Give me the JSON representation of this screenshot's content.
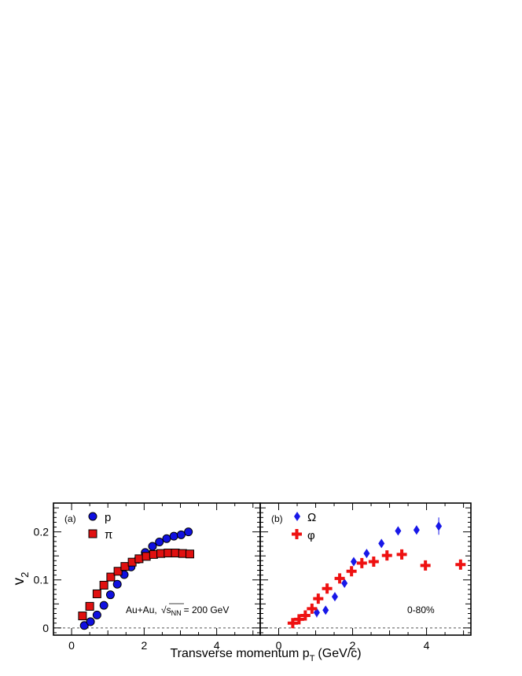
{
  "figure": {
    "ylabel_main": "v",
    "ylabel_sub": "2",
    "xlabel_main": "Transverse momentum p",
    "xlabel_sub": "T",
    "xlabel_unit": "(GeV/c)"
  },
  "chart_data": [
    {
      "type": "scatter",
      "panel_label": "(a)",
      "xlim": [
        -0.5,
        5.2
      ],
      "ylim": [
        -0.015,
        0.26
      ],
      "xticks": [
        0,
        2,
        4
      ],
      "yticks": [
        0,
        0.1,
        0.2
      ],
      "ytick_labels": [
        "0",
        "0.1",
        "0.2"
      ],
      "annotation": {
        "system": "Au+Au,",
        "sqrt_symbol": "√",
        "s_symbol": "s",
        "s_sub": "NN",
        "energy": "= 200 GeV"
      },
      "series": [
        {
          "name": "p",
          "marker": "circle",
          "color": "#1010e0",
          "x": [
            0.35,
            0.52,
            0.7,
            0.89,
            1.07,
            1.26,
            1.45,
            1.64,
            1.84,
            2.03,
            2.23,
            2.42,
            2.62,
            2.82,
            3.02,
            3.22
          ],
          "y": [
            0.005,
            0.013,
            0.027,
            0.047,
            0.069,
            0.091,
            0.111,
            0.127,
            0.143,
            0.157,
            0.17,
            0.179,
            0.186,
            0.191,
            0.194,
            0.2
          ]
        },
        {
          "name": "π",
          "marker": "square",
          "color": "#e01010",
          "x": [
            0.3,
            0.5,
            0.7,
            0.89,
            1.08,
            1.28,
            1.47,
            1.67,
            1.86,
            2.06,
            2.26,
            2.46,
            2.66,
            2.86,
            3.06,
            3.26
          ],
          "y": [
            0.025,
            0.045,
            0.071,
            0.089,
            0.106,
            0.118,
            0.128,
            0.137,
            0.144,
            0.149,
            0.153,
            0.155,
            0.156,
            0.156,
            0.155,
            0.154
          ]
        }
      ]
    },
    {
      "type": "scatter",
      "panel_label": "(b)",
      "xlim": [
        -0.5,
        5.2
      ],
      "ylim": [
        -0.015,
        0.26
      ],
      "xticks": [
        0,
        2,
        4
      ],
      "centrality": "0-80%",
      "series": [
        {
          "name": "Ω",
          "marker": "diamond",
          "color": "#1818e8",
          "x": [
            1.03,
            1.27,
            1.52,
            1.78,
            2.03,
            2.38,
            2.78,
            3.23,
            3.73,
            4.33
          ],
          "y": [
            0.032,
            0.037,
            0.065,
            0.093,
            0.138,
            0.155,
            0.176,
            0.202,
            0.204,
            0.212
          ],
          "yerr": [
            0.01,
            0.008,
            0.006,
            0.005,
            0.005,
            0.004,
            0.005,
            0.006,
            0.009,
            0.018
          ]
        },
        {
          "name": "φ",
          "marker": "cross",
          "color": "#ee1111",
          "x": [
            0.38,
            0.55,
            0.72,
            0.9,
            1.07,
            1.31,
            1.65,
            1.97,
            2.25,
            2.57,
            2.93,
            3.33,
            3.97,
            4.92
          ],
          "y": [
            0.01,
            0.018,
            0.026,
            0.04,
            0.061,
            0.082,
            0.103,
            0.118,
            0.135,
            0.138,
            0.151,
            0.153,
            0.13,
            0.132
          ],
          "yerr": [
            0.002,
            0.002,
            0.002,
            0.002,
            0.002,
            0.002,
            0.002,
            0.002,
            0.002,
            0.003,
            0.003,
            0.003,
            0.004,
            0.008
          ]
        }
      ]
    }
  ]
}
